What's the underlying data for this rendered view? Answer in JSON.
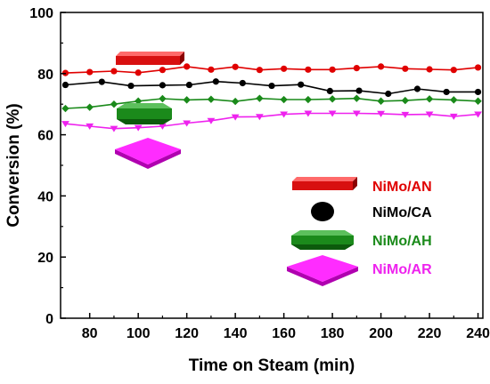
{
  "chart_data": {
    "type": "line",
    "title": "",
    "xlabel": "Time on Steam (min)",
    "ylabel": "Conversion (%)",
    "xlim": [
      68,
      242
    ],
    "ylim": [
      0,
      100
    ],
    "xticks": [
      80,
      100,
      120,
      140,
      160,
      180,
      200,
      220,
      240
    ],
    "yticks": [
      0,
      20,
      40,
      60,
      80,
      100
    ],
    "grid": false,
    "legend_position": "bottom-right",
    "series": [
      {
        "name": "NiMo/AN",
        "color": "#e00000",
        "marker": "circle",
        "x": [
          70,
          80,
          90,
          100,
          110,
          120,
          130,
          140,
          150,
          160,
          170,
          180,
          190,
          200,
          210,
          220,
          230,
          240
        ],
        "y": [
          80.2,
          80.5,
          80.8,
          80.3,
          81.2,
          82.3,
          81.3,
          82.2,
          81.2,
          81.6,
          81.3,
          81.3,
          81.8,
          82.3,
          81.6,
          81.4,
          81.2,
          82.0
        ]
      },
      {
        "name": "NiMo/CA",
        "color": "#000000",
        "marker": "circle",
        "x": [
          70,
          85,
          97,
          110,
          121,
          132,
          143,
          155,
          167,
          179,
          191,
          203,
          215,
          227,
          240
        ],
        "y": [
          76.3,
          77.3,
          76.0,
          76.2,
          76.3,
          77.4,
          76.9,
          76.0,
          76.4,
          74.3,
          74.4,
          73.4,
          75.0,
          74.0,
          74.0
        ]
      },
      {
        "name": "NiMo/AH",
        "color": "#1a8a1a",
        "marker": "diamond",
        "x": [
          70,
          80,
          90,
          100,
          110,
          120,
          130,
          140,
          150,
          160,
          170,
          180,
          190,
          200,
          210,
          220,
          230,
          240
        ],
        "y": [
          68.6,
          69.0,
          70.0,
          71.0,
          71.8,
          71.4,
          71.6,
          70.9,
          71.9,
          71.5,
          71.5,
          71.7,
          71.9,
          71.0,
          71.2,
          71.7,
          71.4,
          71.0
        ]
      },
      {
        "name": "NiMo/AR",
        "color": "#ee22ee",
        "marker": "triangle-down",
        "x": [
          70,
          80,
          90,
          100,
          110,
          120,
          130,
          140,
          150,
          160,
          170,
          180,
          190,
          200,
          210,
          220,
          230,
          240
        ],
        "y": [
          63.6,
          62.8,
          62.0,
          62.3,
          62.8,
          63.8,
          64.6,
          65.8,
          65.9,
          66.7,
          67.0,
          67.0,
          67.0,
          66.9,
          66.6,
          66.7,
          66.0,
          66.7
        ]
      }
    ]
  }
}
